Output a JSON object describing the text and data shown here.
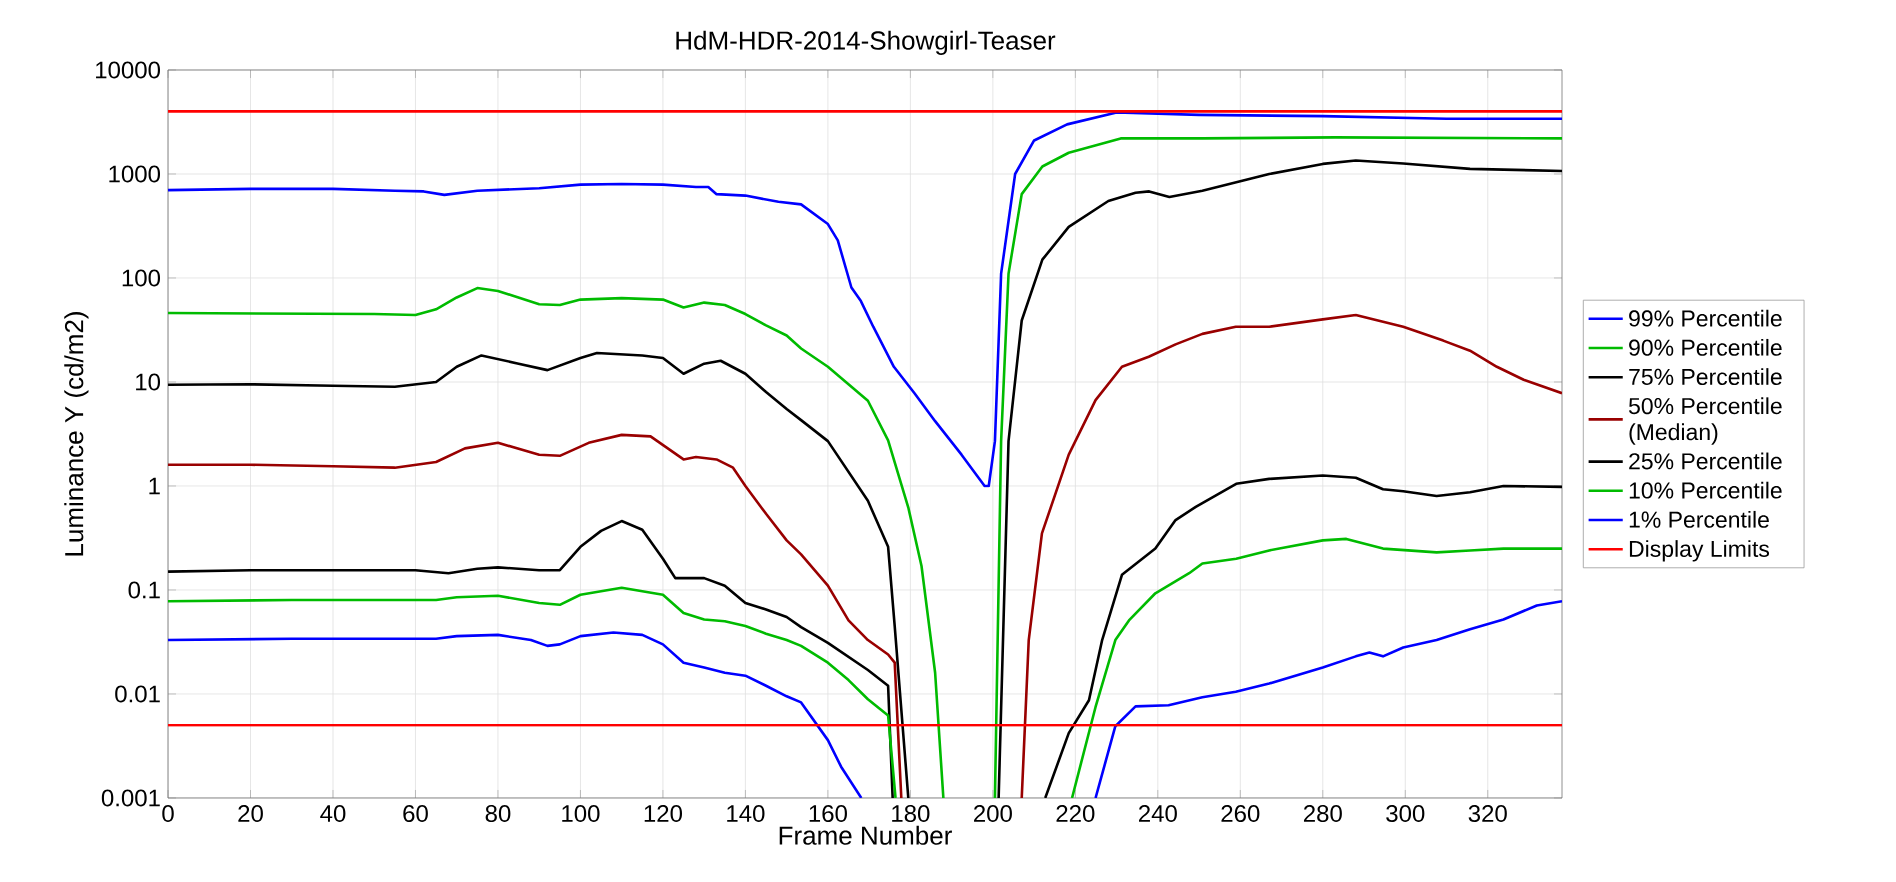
{
  "chart_data": {
    "type": "line",
    "title": "HdM-HDR-2014-Showgirl-Teaser",
    "xlabel": "Frame Number",
    "ylabel": "Luminance Y (cd/m2)",
    "log": "y",
    "grid": true,
    "legend": "right",
    "marker": "none",
    "line_style": "solid",
    "xlim": [
      0,
      338
    ],
    "ylim": [
      0.001,
      10000
    ],
    "xticks": [
      0,
      20,
      40,
      60,
      80,
      100,
      120,
      140,
      160,
      180,
      200,
      220,
      240,
      260,
      280,
      300,
      320
    ],
    "yticks": [
      0.001,
      0.01,
      0.1,
      1,
      10,
      100,
      1000,
      10000
    ],
    "series": [
      {
        "name": "99% Percentile",
        "color": "#0000ff",
        "x": [
          0,
          20,
          40,
          55,
          62,
          67,
          75,
          90,
          100,
          110,
          120,
          128,
          131,
          133,
          140,
          148,
          153.5,
          160,
          162.4,
          165.7,
          168,
          171,
          176,
          181,
          186,
          192.4,
          198,
          199,
          200.5,
          202,
          205.4,
          210,
          218,
          230,
          250,
          280,
          310,
          338
        ],
        "values": [
          700,
          720,
          720,
          690,
          680,
          630,
          690,
          730,
          790,
          800,
          790,
          750,
          750,
          640,
          620,
          540,
          510,
          330,
          230,
          81,
          60,
          34,
          14,
          7.8,
          4.2,
          2,
          1,
          1,
          2.7,
          110,
          1000,
          2100,
          3000,
          3900,
          3700,
          3600,
          3400,
          3400
        ]
      },
      {
        "name": "90% Percentile",
        "color": "#00bb00",
        "x": [
          0,
          50,
          60,
          65,
          70,
          75,
          80,
          90,
          95,
          100,
          110,
          120,
          125,
          130,
          135,
          140,
          145,
          150,
          153.5,
          160,
          169.7,
          174.6,
          179.5,
          182.7,
          186,
          188,
          194,
          200.5,
          202,
          203.8,
          207,
          212,
          218.4,
          231,
          250.8,
          283,
          338
        ],
        "values": [
          46,
          45,
          44,
          50,
          65,
          80,
          75,
          56,
          55,
          62,
          64,
          62,
          52,
          58,
          55,
          45,
          35,
          28,
          21,
          14,
          6.6,
          2.75,
          0.62,
          0.17,
          0.016,
          0.001,
          null,
          0.001,
          2.7,
          110,
          640,
          1180,
          1600,
          2200,
          2200,
          2250,
          2200
        ]
      },
      {
        "name": "75% Percentile",
        "color": "#000000",
        "x": [
          0,
          20,
          40,
          55,
          65,
          70,
          76,
          85,
          92,
          100,
          104,
          115,
          120,
          125,
          130,
          134,
          140,
          145,
          150,
          153.5,
          160,
          169.7,
          174.6,
          176.2,
          179.5,
          190,
          201.4,
          203.8,
          207,
          212,
          218.4,
          228,
          234.6,
          237.9,
          242.8,
          250.8,
          267,
          280,
          288,
          299.5,
          315.7,
          338
        ],
        "values": [
          9.4,
          9.5,
          9.2,
          9,
          10,
          14,
          18,
          15,
          13,
          17,
          19,
          18,
          17,
          12,
          15,
          16,
          12,
          8,
          5.5,
          4.3,
          2.7,
          0.72,
          0.26,
          0.045,
          0.001,
          null,
          0.001,
          2.7,
          39,
          150,
          310,
          550,
          660,
          680,
          600,
          690,
          1000,
          1250,
          1350,
          1260,
          1120,
          1070
        ]
      },
      {
        "name": "50% Percentile (Median)",
        "color": "#990000",
        "x": [
          0,
          20,
          40,
          55,
          65,
          72,
          80,
          90,
          95,
          102,
          110,
          117,
          125,
          128,
          133,
          137,
          140,
          145,
          150,
          153.5,
          160,
          165,
          169.7,
          174.6,
          176.2,
          177.8,
          192,
          207,
          208.7,
          211.9,
          218.4,
          224.9,
          231.3,
          237.8,
          244.3,
          250.8,
          258.9,
          267,
          280,
          288,
          299.5,
          309.2,
          315.7,
          322.2,
          328.7,
          338
        ],
        "values": [
          1.6,
          1.6,
          1.55,
          1.5,
          1.7,
          2.3,
          2.6,
          2,
          1.95,
          2.6,
          3.1,
          3,
          1.8,
          1.9,
          1.8,
          1.5,
          1,
          0.54,
          0.3,
          0.22,
          0.11,
          0.051,
          0.033,
          0.024,
          0.02,
          0.001,
          null,
          0.001,
          0.033,
          0.35,
          2,
          6.7,
          14,
          17.5,
          23,
          29,
          34,
          34,
          40,
          44,
          34,
          25,
          20,
          14,
          10.5,
          7.8
        ]
      },
      {
        "name": "25% Percentile",
        "color": "#000000",
        "x": [
          0,
          20,
          40,
          60,
          68,
          75,
          80,
          90,
          95,
          100,
          105,
          110,
          115,
          120,
          123,
          130,
          135,
          140,
          145,
          150,
          153.5,
          160,
          169.7,
          174.6,
          175.7,
          195,
          212.7,
          218.4,
          223.3,
          226.5,
          231.3,
          239.4,
          244.3,
          249.2,
          259,
          267,
          280,
          288,
          294.6,
          299.5,
          307.6,
          315.7,
          323.8,
          338
        ],
        "values": [
          0.15,
          0.155,
          0.155,
          0.155,
          0.145,
          0.16,
          0.165,
          0.155,
          0.155,
          0.26,
          0.37,
          0.46,
          0.38,
          0.2,
          0.13,
          0.13,
          0.11,
          0.075,
          0.065,
          0.055,
          0.044,
          0.031,
          0.017,
          0.012,
          0.001,
          null,
          0.001,
          0.0042,
          0.0087,
          0.033,
          0.14,
          0.25,
          0.47,
          0.63,
          1.05,
          1.17,
          1.26,
          1.2,
          0.93,
          0.89,
          0.8,
          0.87,
          1,
          0.98
        ]
      },
      {
        "name": "10% Percentile",
        "color": "#00bb00",
        "x": [
          0,
          30,
          65,
          70,
          80,
          90,
          95,
          100,
          110,
          120,
          125,
          130,
          135,
          140,
          145,
          150,
          153.5,
          160,
          165,
          169.7,
          174.6,
          176.4,
          198,
          219.2,
          224.9,
          229.7,
          233,
          239.4,
          247.6,
          250.8,
          259,
          267,
          280,
          285.7,
          294.6,
          307.6,
          315.7,
          323.8,
          338
        ],
        "values": [
          0.078,
          0.08,
          0.08,
          0.085,
          0.088,
          0.075,
          0.072,
          0.09,
          0.105,
          0.09,
          0.06,
          0.052,
          0.05,
          0.045,
          0.038,
          0.033,
          0.029,
          0.02,
          0.0136,
          0.0089,
          0.0062,
          0.001,
          null,
          0.001,
          0.0075,
          0.033,
          0.051,
          0.093,
          0.145,
          0.18,
          0.2,
          0.24,
          0.3,
          0.31,
          0.25,
          0.23,
          0.24,
          0.25,
          0.25
        ]
      },
      {
        "name": "1% Percentile",
        "color": "#0000ff",
        "x": [
          0,
          30,
          65,
          70,
          80,
          88,
          92,
          95,
          100,
          108,
          115,
          120,
          125,
          130,
          135,
          140,
          145,
          150,
          153.5,
          160,
          163.2,
          168.1,
          196,
          224.9,
          229.7,
          234.6,
          242.6,
          250.8,
          258.9,
          267,
          280,
          288,
          291.3,
          294.6,
          299.5,
          307.6,
          315.7,
          323.8,
          331.9,
          338
        ],
        "values": [
          0.033,
          0.034,
          0.034,
          0.036,
          0.037,
          0.033,
          0.029,
          0.03,
          0.036,
          0.039,
          0.037,
          0.03,
          0.02,
          0.018,
          0.016,
          0.015,
          0.012,
          0.0095,
          0.0083,
          0.0036,
          0.002,
          0.001,
          null,
          0.001,
          0.0049,
          0.0076,
          0.0078,
          0.0093,
          0.0105,
          0.0126,
          0.018,
          0.023,
          0.025,
          0.023,
          0.028,
          0.033,
          0.042,
          0.052,
          0.071,
          0.078
        ]
      }
    ],
    "ref_lines": [
      {
        "axis": "y",
        "value": 4000,
        "label": "Display Limits",
        "color": "#ff0000"
      },
      {
        "axis": "y",
        "value": 0.005,
        "color": "#ff0000"
      }
    ]
  }
}
